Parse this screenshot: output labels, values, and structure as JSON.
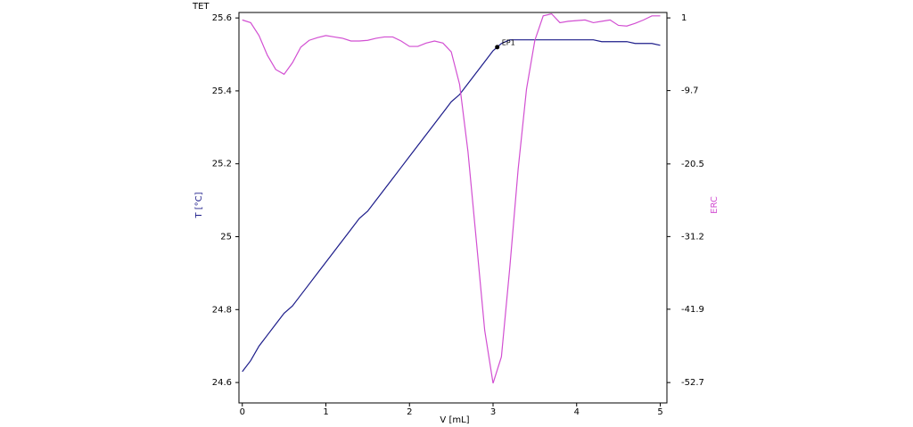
{
  "chart_data": {
    "type": "line",
    "title": "TET",
    "x_label": "V [mL]",
    "y_label": "T [°C]",
    "y2_label": "ERC",
    "x": [
      0,
      0.1,
      0.2,
      0.3,
      0.4,
      0.5,
      0.6,
      0.7,
      0.8,
      0.9,
      1.0,
      1.1,
      1.2,
      1.3,
      1.4,
      1.5,
      1.6,
      1.7,
      1.8,
      1.9,
      2.0,
      2.1,
      2.2,
      2.3,
      2.4,
      2.5,
      2.6,
      2.7,
      2.8,
      2.9,
      3.0,
      3.1,
      3.2,
      3.3,
      3.4,
      3.5,
      3.6,
      3.7,
      3.8,
      3.9,
      4.0,
      4.1,
      4.2,
      4.3,
      4.4,
      4.5,
      4.6,
      4.7,
      4.8,
      4.9,
      5.0
    ],
    "series": [
      {
        "name": "T [°C]",
        "color": "#1c1c8a",
        "axis": "y",
        "values": [
          24.63,
          24.66,
          24.7,
          24.73,
          24.76,
          24.79,
          24.81,
          24.84,
          24.87,
          24.9,
          24.93,
          24.96,
          24.99,
          25.02,
          25.05,
          25.07,
          25.1,
          25.13,
          25.16,
          25.19,
          25.22,
          25.25,
          25.28,
          25.31,
          25.34,
          25.37,
          25.39,
          25.42,
          25.45,
          25.48,
          25.51,
          25.53,
          25.54,
          25.54,
          25.54,
          25.54,
          25.54,
          25.54,
          25.54,
          25.54,
          25.54,
          25.54,
          25.54,
          25.535,
          25.535,
          25.535,
          25.535,
          25.53,
          25.53,
          25.53,
          25.525
        ]
      },
      {
        "name": "ERC",
        "color": "#d24fd2",
        "axis": "y2",
        "values": [
          0.7,
          0.3,
          -1.6,
          -4.5,
          -6.6,
          -7.3,
          -5.6,
          -3.3,
          -2.3,
          -1.9,
          -1.6,
          -1.8,
          -2.0,
          -2.4,
          -2.4,
          -2.3,
          -2.0,
          -1.8,
          -1.8,
          -2.4,
          -3.2,
          -3.2,
          -2.7,
          -2.4,
          -2.7,
          -4.0,
          -8.8,
          -18.7,
          -31.8,
          -45.0,
          -52.8,
          -48.9,
          -35.8,
          -21.3,
          -9.5,
          -2.3,
          1.3,
          1.6,
          0.3,
          0.5,
          0.6,
          0.7,
          0.3,
          0.5,
          0.7,
          -0.1,
          -0.2,
          0.2,
          0.7,
          1.3,
          1.3
        ]
      }
    ],
    "annotation": {
      "text": "EP1",
      "x": 3.05,
      "y": 25.52
    },
    "xlim": [
      -0.04,
      5.08
    ],
    "xticks": [
      0,
      1,
      2,
      3,
      4,
      5
    ],
    "ylim": [
      24.544,
      25.615
    ],
    "yticks": [
      24.6,
      24.8,
      25,
      25.2,
      25.4,
      25.6
    ],
    "y2lim": [
      -55.7,
      1.8
    ],
    "y2ticks": [
      -52.7,
      -41.9,
      -31.2,
      -20.5,
      -9.7,
      1
    ]
  }
}
